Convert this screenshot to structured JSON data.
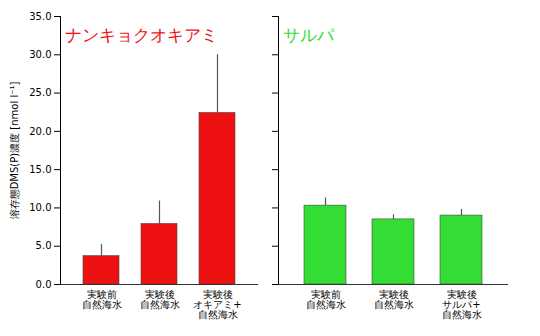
{
  "chart_data": [
    {
      "type": "bar",
      "title": "ナンキョクオキアミ",
      "y_label": "溶存態DMS(P)濃度 [nmol l⁻¹]",
      "categories": [
        "実験前\n自然海水",
        "実験後\n自然海水",
        "実験後\nオキアミ+\n自然海水"
      ],
      "values": [
        3.7,
        7.9,
        22.4
      ],
      "errors": [
        1.5,
        3.0,
        7.6
      ],
      "color": "#ee1111",
      "ylim": [
        0,
        35
      ],
      "yticks": [
        {
          "value": 0,
          "label": "0.0"
        },
        {
          "value": 5,
          "label": "5.0"
        },
        {
          "value": 10,
          "label": "10.0"
        },
        {
          "value": 15,
          "label": "15.0"
        },
        {
          "value": 20,
          "label": "20.0"
        },
        {
          "value": 25,
          "label": "25.0"
        },
        {
          "value": 30,
          "label": "30.0"
        },
        {
          "value": 35,
          "label": "35.0"
        }
      ]
    },
    {
      "type": "bar",
      "title": "サルパ",
      "categories": [
        "実験前\n自然海水",
        "実験後\n自然海水",
        "実験後\nサルパ+\n自然海水"
      ],
      "values": [
        10.3,
        8.5,
        9.0
      ],
      "errors": [
        1.0,
        0.6,
        0.8
      ],
      "color": "#33dd33",
      "ylim": [
        0,
        35
      ],
      "yticks": [
        {
          "value": 0,
          "label": "0.0"
        },
        {
          "value": 5,
          "label": "5.0"
        },
        {
          "value": 10,
          "label": "10.0"
        },
        {
          "value": 15,
          "label": "15.0"
        },
        {
          "value": 20,
          "label": "20.0"
        },
        {
          "value": 25,
          "label": "25.0"
        },
        {
          "value": 30,
          "label": "30.0"
        },
        {
          "value": 35,
          "label": "35.0"
        }
      ],
      "tick_labels": "x"
    }
  ]
}
